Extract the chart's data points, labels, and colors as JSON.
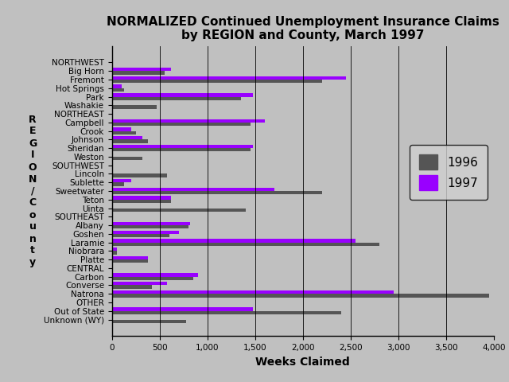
{
  "title": "NORMALIZED Continued Unemployment Insurance Claims\nby REGION and County, March 1997",
  "xlabel": "Weeks Claimed",
  "ylabel": "R\nE\nG\nI\nO\nN\n/\nC\no\nu\nn\nt\ny",
  "categories": [
    "NORTHWEST",
    "Big Horn",
    "Fremont",
    "Hot Springs",
    "Park",
    "Washakie",
    "NORTHEAST",
    "Campbell",
    "Crook",
    "Johnson",
    "Sheridan",
    "Weston",
    "SOUTHWEST",
    "Lincoln",
    "Sublette",
    "Sweetwater",
    "Teton",
    "Uinta",
    "SOUTHEAST",
    "Albany",
    "Goshen",
    "Laramie",
    "Niobrara",
    "Platte",
    "CENTRAL",
    "Carbon",
    "Converse",
    "Natrona",
    "OTHER",
    "Out of State",
    "Unknown (WY)"
  ],
  "values_1996": [
    0,
    550,
    2200,
    130,
    1350,
    470,
    0,
    1450,
    250,
    380,
    1450,
    320,
    0,
    580,
    130,
    2200,
    620,
    1400,
    0,
    800,
    600,
    2800,
    50,
    380,
    0,
    850,
    420,
    3950,
    0,
    2400,
    780
  ],
  "values_1997": [
    0,
    620,
    2450,
    100,
    1480,
    0,
    0,
    1600,
    200,
    320,
    1480,
    0,
    0,
    0,
    200,
    1700,
    620,
    0,
    0,
    820,
    700,
    2550,
    50,
    380,
    0,
    900,
    580,
    2950,
    0,
    1480,
    0
  ],
  "color_1996": "#555555",
  "color_1997": "#9900ff",
  "xlim": [
    0,
    4000
  ],
  "xticks": [
    0,
    500,
    1000,
    1500,
    2000,
    2500,
    3000,
    3500,
    4000
  ],
  "xticklabels": [
    "0",
    "500",
    "1,000",
    "1,500",
    "2,000",
    "2,500",
    "3,000",
    "3,500",
    "4,000"
  ],
  "background_color": "#c0c0c0",
  "title_fontsize": 11,
  "tick_fontsize": 7.5,
  "bar_height": 0.4,
  "region_labels": [
    "NORTHWEST",
    "NORTHEAST",
    "SOUTHWEST",
    "SOUTHEAST",
    "CENTRAL",
    "OTHER"
  ]
}
